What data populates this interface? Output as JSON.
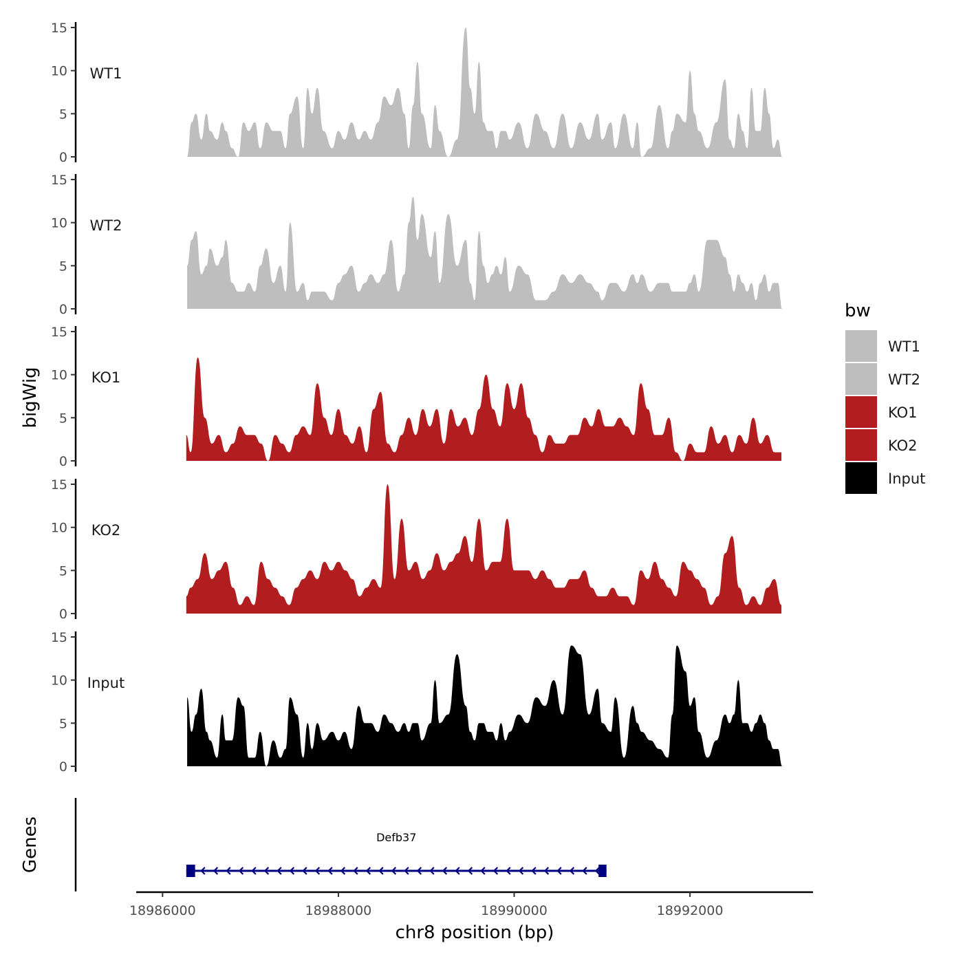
{
  "chart_data": {
    "type": "area",
    "title": "",
    "xlabel": "chr8 position (bp)",
    "ylabel": "bigWig",
    "genes_ylabel": "Genes",
    "xlim": [
      18985700,
      18993400
    ],
    "x_ticks": [
      18986000,
      18988000,
      18990000,
      18992000
    ],
    "x_tick_labels": [
      "18986000",
      "18988000",
      "18990000",
      "18992000"
    ],
    "ylim": [
      0,
      15
    ],
    "y_ticks": [
      0,
      5,
      10,
      15
    ],
    "y_tick_labels": [
      "0",
      "5",
      "10",
      "15"
    ],
    "legend": {
      "title": "bw",
      "position": "right",
      "entries": [
        {
          "label": "WT1",
          "color": "#bebebe"
        },
        {
          "label": "WT2",
          "color": "#bebebe"
        },
        {
          "label": "KO1",
          "color": "#b21e20"
        },
        {
          "label": "KO2",
          "color": "#b21e20"
        },
        {
          "label": "Input",
          "color": "#000000"
        }
      ]
    },
    "series": [
      {
        "name": "WT1",
        "color": "#bebebe",
        "x": [
          18986280,
          18986330,
          18986380,
          18986440,
          18986500,
          18986540,
          18986620,
          18986680,
          18986720,
          18986790,
          18986860,
          18986920,
          18986980,
          18987050,
          18987110,
          18987180,
          18987260,
          18987340,
          18987400,
          18987450,
          18987530,
          18987600,
          18987650,
          18987700,
          18987760,
          18987830,
          18987930,
          18988000,
          18988070,
          18988150,
          18988230,
          18988300,
          18988370,
          18988450,
          18988520,
          18988600,
          18988680,
          18988750,
          18988800,
          18988850,
          18988900,
          18988950,
          18989050,
          18989100,
          18989150,
          18989250,
          18989350,
          18989450,
          18989500,
          18989550,
          18989600,
          18989650,
          18989700,
          18989750,
          18989800,
          18989850,
          18989900,
          18989950,
          18990050,
          18990150,
          18990250,
          18990350,
          18990450,
          18990550,
          18990650,
          18990750,
          18990850,
          18990950,
          18991000,
          18991100,
          18991150,
          18991250,
          18991350,
          18991400,
          18991450,
          18991550,
          18991650,
          18991750,
          18991800,
          18991850,
          18991950,
          18992000,
          18992050,
          18992100,
          18992200,
          18992300,
          18992400,
          18992450,
          18992500,
          18992550,
          18992600,
          18992650,
          18992700,
          18992750,
          18992800,
          18992850,
          18992900,
          18992950,
          18993000,
          18993050
        ],
        "values": [
          0,
          4,
          5,
          2,
          5,
          3,
          2,
          4,
          3,
          1,
          0,
          4,
          3,
          4,
          1,
          4,
          3,
          3,
          1,
          5,
          7,
          1,
          8,
          5,
          8,
          3,
          1,
          3,
          2,
          4,
          2,
          3,
          2,
          4,
          7,
          6,
          8,
          5,
          1,
          6,
          11,
          5,
          1,
          6,
          3,
          0,
          2,
          15,
          8,
          5,
          11,
          4,
          3,
          3,
          1,
          3,
          3,
          2,
          4,
          1,
          5,
          3,
          1,
          5,
          1,
          4,
          2,
          5,
          2,
          4,
          1,
          5,
          1,
          4,
          0,
          1,
          6,
          1,
          3,
          5,
          4,
          10,
          5,
          3,
          1,
          4,
          9,
          2,
          1,
          5,
          3,
          1,
          8,
          3,
          3,
          8,
          5,
          1,
          2,
          0
        ]
      },
      {
        "name": "WT2",
        "color": "#bebebe",
        "x": [
          18986280,
          18986330,
          18986380,
          18986440,
          18986500,
          18986540,
          18986620,
          18986680,
          18986720,
          18986790,
          18986860,
          18986920,
          18986980,
          18987050,
          18987110,
          18987180,
          18987260,
          18987340,
          18987400,
          18987450,
          18987530,
          18987600,
          18987650,
          18987700,
          18987760,
          18987830,
          18987930,
          18988000,
          18988070,
          18988150,
          18988230,
          18988300,
          18988370,
          18988450,
          18988520,
          18988600,
          18988680,
          18988750,
          18988800,
          18988850,
          18988900,
          18988950,
          18989050,
          18989100,
          18989150,
          18989250,
          18989350,
          18989450,
          18989500,
          18989550,
          18989600,
          18989650,
          18989700,
          18989750,
          18989800,
          18989850,
          18989900,
          18989950,
          18990050,
          18990150,
          18990250,
          18990350,
          18990450,
          18990550,
          18990650,
          18990750,
          18990850,
          18990950,
          18991000,
          18991100,
          18991150,
          18991250,
          18991350,
          18991400,
          18991450,
          18991550,
          18991650,
          18991750,
          18991800,
          18991850,
          18991950,
          18992000,
          18992050,
          18992100,
          18992200,
          18992300,
          18992400,
          18992450,
          18992500,
          18992550,
          18992600,
          18992650,
          18992700,
          18992750,
          18992800,
          18992850,
          18992900,
          18992950,
          18993000,
          18993050
        ],
        "values": [
          5,
          8,
          9,
          4,
          5,
          7,
          5,
          6,
          8,
          3,
          2,
          2,
          3,
          2,
          5,
          7,
          3,
          5,
          2,
          10,
          2,
          3,
          1,
          2,
          2,
          2,
          1,
          3,
          4,
          5,
          2,
          3,
          4,
          3,
          4,
          8,
          2,
          4,
          10,
          13,
          8,
          11,
          6,
          9,
          3,
          11,
          5,
          8,
          3,
          1,
          9,
          5,
          3,
          4,
          5,
          4,
          6,
          2,
          5,
          4,
          1,
          1,
          2,
          4,
          3,
          4,
          3,
          2,
          1,
          3,
          3,
          2,
          4,
          3,
          4,
          2,
          3,
          3,
          2,
          2,
          2,
          3,
          4,
          2,
          8,
          8,
          6,
          4,
          2,
          4,
          3,
          2,
          3,
          1,
          3,
          4,
          2,
          3,
          3,
          0
        ]
      },
      {
        "name": "KO1",
        "color": "#b21e20",
        "x": [
          18986270,
          18986320,
          18986400,
          18986480,
          18986560,
          18986640,
          18986720,
          18986800,
          18986880,
          18986960,
          18987040,
          18987120,
          18987200,
          18987280,
          18987360,
          18987440,
          18987520,
          18987600,
          18987680,
          18987760,
          18987840,
          18987920,
          18988000,
          18988080,
          18988160,
          18988240,
          18988320,
          18988400,
          18988480,
          18988560,
          18988640,
          18988720,
          18988800,
          18988880,
          18988960,
          18989040,
          18989120,
          18989200,
          18989280,
          18989360,
          18989440,
          18989520,
          18989600,
          18989680,
          18989760,
          18989840,
          18989920,
          18990000,
          18990080,
          18990160,
          18990240,
          18990320,
          18990400,
          18990480,
          18990560,
          18990640,
          18990720,
          18990800,
          18990880,
          18990960,
          18991040,
          18991120,
          18991200,
          18991280,
          18991360,
          18991440,
          18991520,
          18991600,
          18991680,
          18991760,
          18991840,
          18991920,
          18992000,
          18992080,
          18992160,
          18992240,
          18992320,
          18992400,
          18992480,
          18992560,
          18992640,
          18992720,
          18992800,
          18992880,
          18992960,
          18993040
        ],
        "values": [
          3,
          1,
          12,
          5,
          2,
          3,
          1,
          2,
          4,
          3,
          3,
          2,
          0,
          3,
          2,
          1,
          3,
          4,
          3,
          9,
          5,
          3,
          6,
          3,
          2,
          4,
          1,
          6,
          8,
          2,
          1,
          3,
          5,
          3,
          6,
          4,
          6,
          2,
          6,
          4,
          5,
          3,
          6,
          10,
          6,
          4,
          9,
          6,
          9,
          5,
          3,
          1,
          3,
          2,
          2,
          3,
          3,
          5,
          4,
          6,
          4,
          4,
          5,
          4,
          3,
          9,
          6,
          3,
          3,
          5,
          1,
          0,
          2,
          1,
          1,
          4,
          2,
          3,
          1,
          3,
          2,
          5,
          2,
          3,
          1,
          1
        ]
      },
      {
        "name": "KO2",
        "color": "#b21e20",
        "x": [
          18986270,
          18986320,
          18986400,
          18986480,
          18986560,
          18986640,
          18986720,
          18986800,
          18986880,
          18986960,
          18987040,
          18987120,
          18987200,
          18987280,
          18987360,
          18987440,
          18987520,
          18987600,
          18987680,
          18987760,
          18987840,
          18987920,
          18988000,
          18988080,
          18988160,
          18988240,
          18988320,
          18988400,
          18988480,
          18988560,
          18988640,
          18988720,
          18988800,
          18988880,
          18988960,
          18989040,
          18989120,
          18989200,
          18989280,
          18989360,
          18989440,
          18989520,
          18989600,
          18989680,
          18989760,
          18989840,
          18989920,
          18990000,
          18990080,
          18990160,
          18990240,
          18990320,
          18990400,
          18990480,
          18990560,
          18990640,
          18990720,
          18990800,
          18990880,
          18990960,
          18991040,
          18991120,
          18991200,
          18991280,
          18991360,
          18991440,
          18991520,
          18991600,
          18991680,
          18991760,
          18991840,
          18991920,
          18992000,
          18992080,
          18992160,
          18992240,
          18992320,
          18992400,
          18992480,
          18992560,
          18992640,
          18992720,
          18992800,
          18992880,
          18992960,
          18993040
        ],
        "values": [
          2,
          3,
          4,
          7,
          4,
          5,
          6,
          3,
          1,
          2,
          1,
          6,
          4,
          3,
          2,
          1,
          3,
          4,
          5,
          4,
          6,
          5,
          6,
          5,
          4,
          2,
          3,
          4,
          3,
          15,
          4,
          11,
          5,
          6,
          4,
          5,
          7,
          5,
          6,
          7,
          9,
          6,
          11,
          5,
          6,
          6,
          11,
          5,
          5,
          5,
          4,
          5,
          4,
          3,
          3,
          4,
          4,
          5,
          3,
          2,
          2,
          3,
          2,
          2,
          1,
          5,
          4,
          6,
          4,
          3,
          2,
          6,
          5,
          4,
          3,
          1,
          2,
          7,
          9,
          3,
          1,
          2,
          1,
          3,
          4,
          1
        ]
      },
      {
        "name": "Input",
        "color": "#000000",
        "x": [
          18986280,
          18986330,
          18986380,
          18986440,
          18986500,
          18986540,
          18986620,
          18986680,
          18986720,
          18986790,
          18986860,
          18986920,
          18986980,
          18987050,
          18987110,
          18987180,
          18987260,
          18987340,
          18987400,
          18987450,
          18987530,
          18987600,
          18987650,
          18987700,
          18987760,
          18987830,
          18987930,
          18988000,
          18988070,
          18988150,
          18988230,
          18988300,
          18988370,
          18988450,
          18988520,
          18988600,
          18988680,
          18988750,
          18988800,
          18988850,
          18988900,
          18988950,
          18989050,
          18989100,
          18989150,
          18989250,
          18989350,
          18989450,
          18989500,
          18989550,
          18989600,
          18989650,
          18989700,
          18989750,
          18989800,
          18989850,
          18989900,
          18989950,
          18990050,
          18990150,
          18990250,
          18990350,
          18990450,
          18990550,
          18990650,
          18990750,
          18990850,
          18990950,
          18991000,
          18991100,
          18991150,
          18991250,
          18991350,
          18991400,
          18991450,
          18991550,
          18991650,
          18991750,
          18991800,
          18991850,
          18991950,
          18992000,
          18992050,
          18992100,
          18992200,
          18992300,
          18992400,
          18992450,
          18992500,
          18992550,
          18992600,
          18992650,
          18992700,
          18992750,
          18992800,
          18992850,
          18992900,
          18992950,
          18993000,
          18993050
        ],
        "values": [
          8,
          4,
          6,
          9,
          4,
          3,
          1,
          6,
          3,
          3,
          8,
          7,
          1,
          1,
          4,
          0,
          3,
          1,
          2,
          8,
          6,
          1,
          5,
          2,
          5,
          3,
          4,
          3,
          4,
          2,
          7,
          5,
          5,
          4,
          6,
          5,
          4,
          5,
          4,
          5,
          5,
          3,
          5,
          10,
          5,
          6,
          13,
          7,
          4,
          3,
          5,
          5,
          4,
          4,
          3,
          5,
          3,
          4,
          6,
          5,
          8,
          7,
          10,
          6,
          14,
          13,
          6,
          9,
          5,
          4,
          8,
          1,
          7,
          5,
          4,
          3,
          2,
          1,
          6,
          14,
          11,
          7,
          8,
          4,
          1,
          3,
          6,
          5,
          6,
          10,
          5,
          5,
          4,
          5,
          6,
          5,
          3,
          2,
          2,
          0
        ]
      }
    ],
    "genes": [
      {
        "name": "Defb37",
        "strand": "-",
        "start": 18986270,
        "end": 18991050,
        "exons": [
          [
            18986270,
            18986370
          ],
          [
            18990960,
            18991050
          ]
        ]
      }
    ]
  }
}
